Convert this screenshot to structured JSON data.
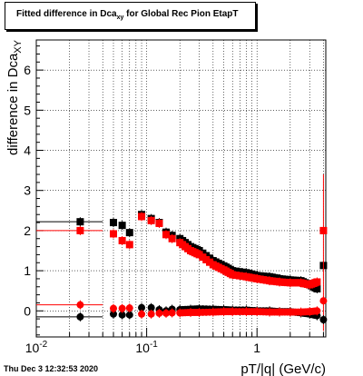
{
  "title": {
    "prefix": "Fitted difference in Dca",
    "subscript": "xy",
    "suffix": " for Global Rec Pion EtapT"
  },
  "footer": "Thu Dec  3 12:32:53 2020",
  "colors": {
    "series_black": "#000000",
    "series_red": "#ff0000",
    "grid": "#000000"
  },
  "chart_data": {
    "type": "scatter",
    "title": "Fitted difference in Dca_xy for Global Rec Pion EtapT",
    "xlabel": "pT/|q| (GeV/c)",
    "ylabel": "difference in Dca_XY",
    "xscale": "log",
    "xlim": [
      0.01,
      4.2
    ],
    "ylim": [
      -0.65,
      6.75
    ],
    "grid": true,
    "x_ticks": [
      {
        "v": 0.01,
        "label": "10^-2"
      },
      {
        "v": 0.1,
        "label": "10^-1"
      },
      {
        "v": 1,
        "label": "1"
      }
    ],
    "y_ticks": [
      0,
      1,
      2,
      3,
      4,
      5,
      6
    ],
    "series": [
      {
        "color": "#000000",
        "marker": "square",
        "x": [
          0.025,
          0.05,
          0.06,
          0.07,
          0.09,
          0.11,
          0.13,
          0.15,
          0.17,
          0.2,
          0.25,
          0.3,
          0.4,
          0.5,
          0.6,
          0.8,
          1.0,
          1.3,
          1.6,
          2.0,
          2.5,
          3.0,
          3.5,
          4.0
        ],
        "y": [
          2.22,
          2.2,
          2.13,
          1.95,
          2.4,
          2.3,
          2.2,
          1.96,
          1.88,
          1.8,
          1.6,
          1.5,
          1.25,
          1.12,
          1.0,
          0.95,
          0.88,
          0.85,
          0.8,
          0.77,
          0.75,
          0.65,
          0.55,
          1.13
        ],
        "xerr_first": [
          0.01,
          0.04
        ]
      },
      {
        "color": "#ff0000",
        "marker": "square",
        "x": [
          0.025,
          0.05,
          0.06,
          0.07,
          0.09,
          0.11,
          0.13,
          0.15,
          0.17,
          0.2,
          0.25,
          0.3,
          0.4,
          0.5,
          0.6,
          0.8,
          1.0,
          1.3,
          1.6,
          2.0,
          2.5,
          3.0,
          3.5,
          4.0
        ],
        "y": [
          2.0,
          1.92,
          1.75,
          1.65,
          2.35,
          2.25,
          2.18,
          1.9,
          1.8,
          1.7,
          1.5,
          1.4,
          1.15,
          1.02,
          0.9,
          0.85,
          0.8,
          0.75,
          0.72,
          0.7,
          0.7,
          0.65,
          0.72,
          2.0
        ],
        "xerr_first": [
          0.01,
          0.04
        ],
        "yerr_last": [
          -0.5,
          3.4
        ]
      },
      {
        "color": "#000000",
        "marker": "circle",
        "x": [
          0.025,
          0.05,
          0.06,
          0.07,
          0.09,
          0.11,
          0.13,
          0.15,
          0.17,
          0.2,
          0.25,
          0.3,
          0.4,
          0.5,
          0.6,
          0.8,
          1.0,
          1.3,
          1.6,
          2.0,
          2.5,
          3.0,
          3.5,
          4.0
        ],
        "y": [
          -0.15,
          -0.08,
          -0.1,
          -0.1,
          0.08,
          0.08,
          0.03,
          0.0,
          0.04,
          0.03,
          0.04,
          0.05,
          0.04,
          0.03,
          0.02,
          0.02,
          0.0,
          0.0,
          -0.02,
          -0.02,
          -0.05,
          -0.08,
          -0.12,
          -0.22
        ],
        "xerr_first": [
          0.01,
          0.04
        ]
      },
      {
        "color": "#ff0000",
        "marker": "circle",
        "x": [
          0.025,
          0.05,
          0.06,
          0.07,
          0.09,
          0.11,
          0.13,
          0.15,
          0.17,
          0.2,
          0.25,
          0.3,
          0.4,
          0.5,
          0.6,
          0.8,
          1.0,
          1.3,
          1.6,
          2.0,
          2.5,
          3.0,
          3.5,
          4.0
        ],
        "y": [
          0.15,
          0.06,
          0.06,
          0.07,
          -0.08,
          -0.08,
          -0.06,
          -0.06,
          -0.05,
          -0.05,
          -0.04,
          -0.04,
          -0.03,
          -0.02,
          -0.02,
          -0.02,
          -0.02,
          -0.03,
          -0.03,
          -0.03,
          -0.03,
          -0.02,
          0.0,
          0.25
        ],
        "xerr_first": [
          0.01,
          0.04
        ]
      }
    ]
  }
}
